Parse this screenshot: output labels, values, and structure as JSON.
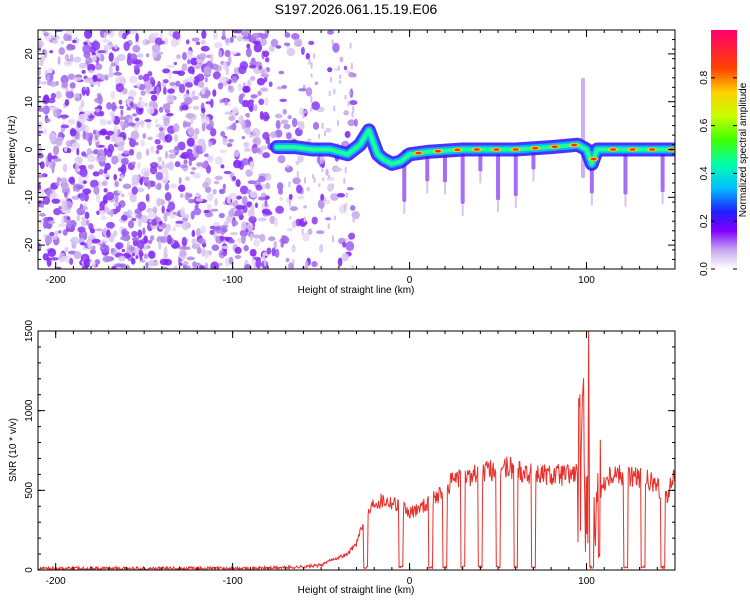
{
  "title": "S197.2026.061.15.19.E06",
  "chart_data": [
    {
      "type": "heatmap",
      "name": "spectrogram",
      "xlabel": "Height of straight line (km)",
      "ylabel": "Frequency (Hz)",
      "xlim": [
        -210,
        150
      ],
      "ylim": [
        -25,
        25
      ],
      "xticks": [
        -200,
        -100,
        0,
        100
      ],
      "yticks": [
        -20,
        -10,
        0,
        10,
        20
      ],
      "colorbar": {
        "label": "Normalized spectral amplitude",
        "range": [
          0,
          1
        ],
        "ticks": [
          0.0,
          0.2,
          0.4,
          0.6,
          0.8
        ]
      },
      "noise_region_km": [
        -210,
        -30
      ],
      "signal_track": [
        {
          "x": -75,
          "y": 0.5
        },
        {
          "x": -65,
          "y": 0.5
        },
        {
          "x": -55,
          "y": 0
        },
        {
          "x": -45,
          "y": 0
        },
        {
          "x": -35,
          "y": -1
        },
        {
          "x": -28,
          "y": 1
        },
        {
          "x": -23,
          "y": 4
        },
        {
          "x": -18,
          "y": -1
        },
        {
          "x": -15,
          "y": -2
        },
        {
          "x": -10,
          "y": -3
        },
        {
          "x": -5,
          "y": -2.5
        },
        {
          "x": 0,
          "y": -1
        },
        {
          "x": 10,
          "y": -0.5
        },
        {
          "x": 30,
          "y": 0
        },
        {
          "x": 60,
          "y": 0
        },
        {
          "x": 80,
          "y": 0.5
        },
        {
          "x": 95,
          "y": 1
        },
        {
          "x": 100,
          "y": 0
        },
        {
          "x": 103,
          "y": -3
        },
        {
          "x": 106,
          "y": 0
        },
        {
          "x": 120,
          "y": 0
        },
        {
          "x": 150,
          "y": 0
        }
      ],
      "dropouts_km": [
        -3,
        10,
        20,
        30,
        40,
        50,
        60,
        70,
        103,
        122,
        143
      ]
    },
    {
      "type": "line",
      "name": "snr",
      "xlabel": "Height of straight line (km)",
      "ylabel": "SNR (10 * v/v)",
      "xlim": [
        -210,
        150
      ],
      "ylim": [
        0,
        1500
      ],
      "xticks": [
        -200,
        -100,
        0,
        100
      ],
      "yticks": [
        0,
        500,
        1000,
        1500
      ],
      "color": "#e8302a",
      "series": [
        {
          "name": "SNR",
          "x": [
            -210,
            -180,
            -150,
            -120,
            -90,
            -70,
            -60,
            -50,
            -45,
            -40,
            -35,
            -30,
            -25,
            -20,
            -15,
            -10,
            -5,
            0,
            5,
            10,
            15,
            20,
            25,
            30,
            35,
            40,
            45,
            50,
            55,
            60,
            65,
            70,
            75,
            80,
            85,
            90,
            94,
            98,
            100,
            102,
            104,
            106,
            110,
            115,
            120,
            125,
            130,
            135,
            140,
            145,
            150
          ],
          "y": [
            10,
            10,
            10,
            10,
            10,
            15,
            20,
            30,
            60,
            80,
            100,
            170,
            320,
            430,
            440,
            430,
            400,
            350,
            390,
            420,
            460,
            510,
            560,
            580,
            600,
            620,
            620,
            640,
            640,
            640,
            620,
            610,
            600,
            600,
            600,
            600,
            610,
            640,
            700,
            1200,
            300,
            400,
            560,
            620,
            600,
            590,
            580,
            560,
            520,
            450,
            600
          ]
        }
      ],
      "dropouts_km": [
        -25,
        -5,
        12,
        20,
        30,
        40,
        50,
        60,
        70,
        103,
        122,
        132,
        143
      ]
    }
  ]
}
